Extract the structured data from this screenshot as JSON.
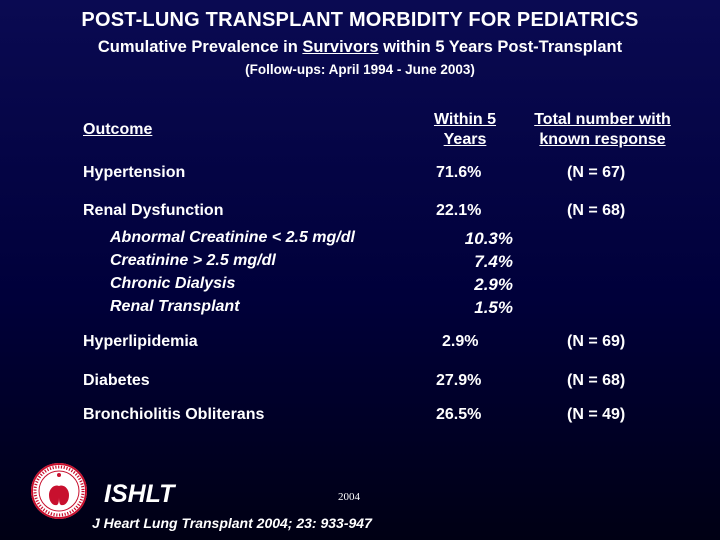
{
  "header": {
    "title": "POST-LUNG TRANSPLANT MORBIDITY FOR PEDIATRICS",
    "subtitle_before": "Cumulative Prevalence in ",
    "subtitle_underlined": "Survivors",
    "subtitle_after": " within 5 Years Post-Transplant",
    "followups": "(Follow-ups: April 1994 - June 2003)"
  },
  "table": {
    "col_outcome": "Outcome",
    "col_within_line1": "Within 5",
    "col_within_line2": "Years",
    "col_total_line1": "Total number with",
    "col_total_line2": "known response",
    "rows": {
      "hypertension": {
        "label": "Hypertension",
        "pct": "71.6%",
        "n": "(N = 67)"
      },
      "renal": {
        "label": "Renal Dysfunction",
        "pct": "22.1%",
        "n": "(N = 68)"
      },
      "renal_sub": [
        {
          "label": "Abnormal Creatinine < 2.5 mg/dl",
          "pct": "10.3%"
        },
        {
          "label": "Creatinine > 2.5 mg/dl",
          "pct": "7.4%"
        },
        {
          "label": "Chronic Dialysis",
          "pct": "2.9%"
        },
        {
          "label": "Renal Transplant",
          "pct": "1.5%"
        }
      ],
      "hyperlipidemia": {
        "label": "Hyperlipidemia",
        "pct": "2.9%",
        "n": "(N = 69)"
      },
      "diabetes": {
        "label": "Diabetes",
        "pct": "27.9%",
        "n": "(N = 68)"
      },
      "bronchiolitis": {
        "label": "Bronchiolitis Obliterans",
        "pct": "26.5%",
        "n": "(N = 49)"
      }
    }
  },
  "footer": {
    "brand": "ISHLT",
    "year": "2004",
    "citation": "J Heart Lung Transplant 2004; 23: 933-947",
    "logo_icon": "ishlt-seal-icon"
  },
  "colors": {
    "background_top": "#0a0a52",
    "background_bottom": "#000014",
    "text": "#ffffff",
    "logo_red": "#c8102e"
  }
}
